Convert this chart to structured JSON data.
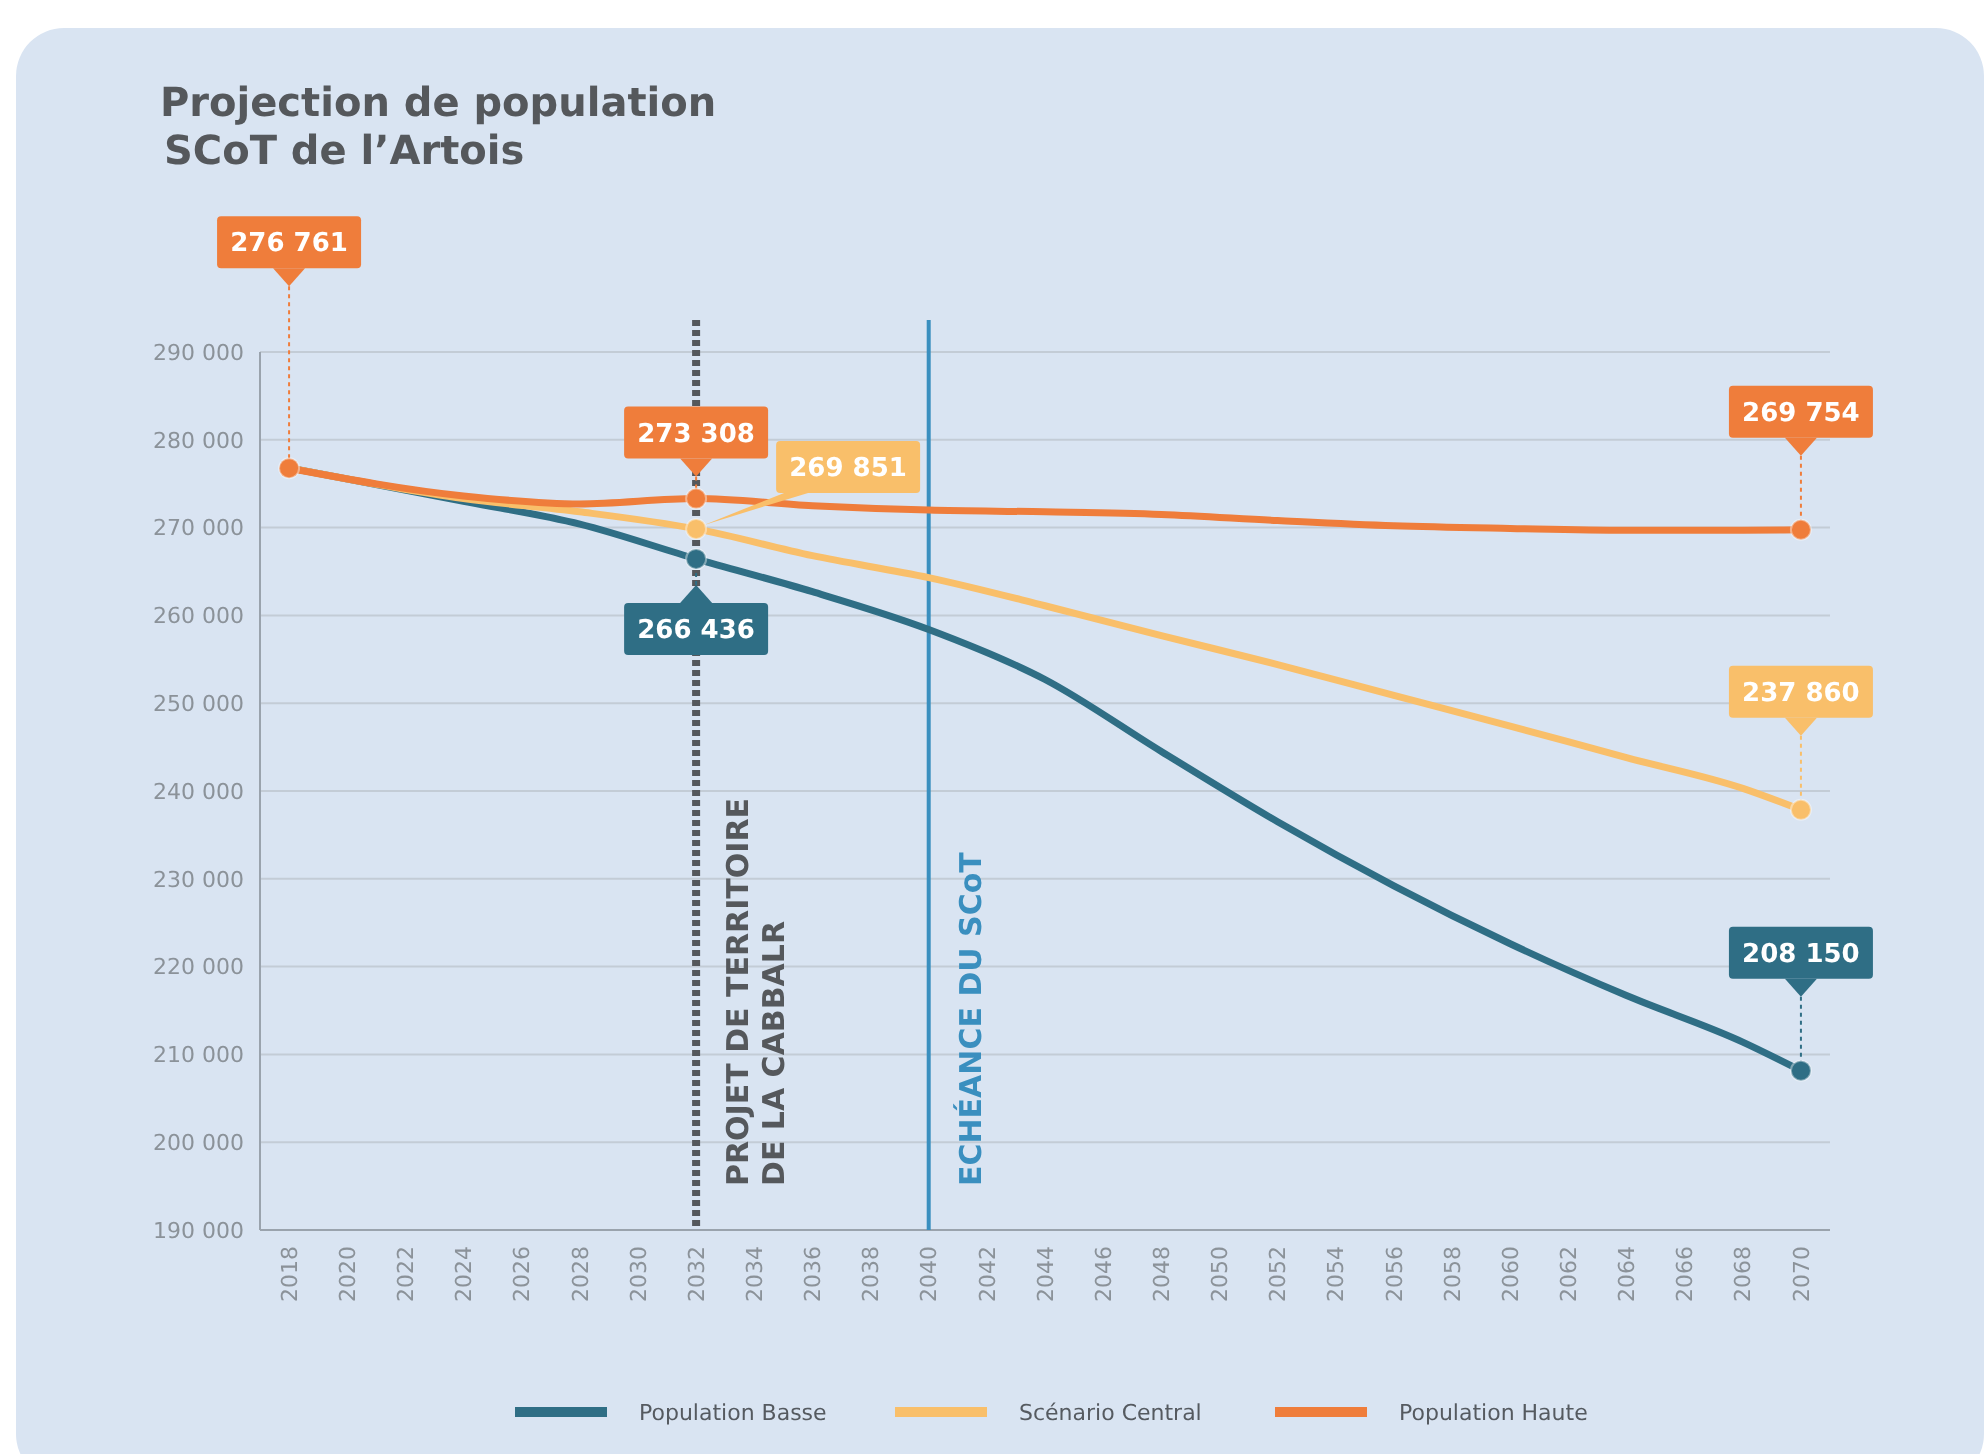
{
  "chart_data": {
    "type": "line",
    "title": "Projection de population",
    "subtitle": "SCoT de l’Artois",
    "x": [
      2018,
      2024,
      2028,
      2032,
      2036,
      2040,
      2044,
      2048,
      2052,
      2056,
      2060,
      2064,
      2068,
      2070
    ],
    "series": [
      {
        "name": "Population Basse",
        "color": "#2f6e85",
        "values": [
          276800,
          273000,
          270400,
          266436,
          262700,
          258400,
          252700,
          244500,
          236500,
          229200,
          222600,
          216700,
          211400,
          208150
        ],
        "value_labels": [
          null,
          null,
          null,
          "266 436",
          null,
          null,
          null,
          null,
          null,
          null,
          null,
          null,
          null,
          "208 150"
        ]
      },
      {
        "name": "Scénario Central",
        "color": "#f9bf6a",
        "values": [
          276800,
          273300,
          271800,
          269851,
          266800,
          264300,
          261100,
          257700,
          254400,
          250900,
          247400,
          243800,
          240300,
          237860
        ],
        "value_labels": [
          null,
          null,
          null,
          "269 851",
          null,
          null,
          null,
          null,
          null,
          null,
          null,
          null,
          null,
          "237 860"
        ]
      },
      {
        "name": "Population Haute",
        "color": "#ef7d3b",
        "values": [
          276761,
          273600,
          272700,
          273308,
          272500,
          272000,
          271800,
          271500,
          270800,
          270200,
          269900,
          269700,
          269700,
          269754
        ],
        "value_labels": [
          "276 761",
          null,
          null,
          "273 308",
          null,
          null,
          null,
          null,
          null,
          null,
          null,
          null,
          null,
          "269 754"
        ]
      }
    ],
    "xlim": [
      2017,
      2071
    ],
    "xticks": [
      2018,
      2020,
      2022,
      2024,
      2026,
      2028,
      2030,
      2032,
      2034,
      2036,
      2038,
      2040,
      2042,
      2044,
      2046,
      2048,
      2050,
      2052,
      2054,
      2056,
      2058,
      2060,
      2062,
      2064,
      2066,
      2068,
      2070
    ],
    "ylim": [
      190000,
      290000
    ],
    "yticks": [
      {
        "value": 190000,
        "label": "190 000"
      },
      {
        "value": 200000,
        "label": "200 000"
      },
      {
        "value": 210000,
        "label": "210 000"
      },
      {
        "value": 220000,
        "label": "220 000"
      },
      {
        "value": 230000,
        "label": "230 000"
      },
      {
        "value": 240000,
        "label": "240 000"
      },
      {
        "value": 250000,
        "label": "250 000"
      },
      {
        "value": 260000,
        "label": "260 000"
      },
      {
        "value": 270000,
        "label": "270 000"
      },
      {
        "value": 280000,
        "label": "280 000"
      },
      {
        "value": 290000,
        "label": "290 000"
      }
    ],
    "ref_lines": [
      {
        "axis": "x",
        "value": 2032,
        "label": "PROJET DE TERRITOIRE\nDE LA CABBALR",
        "color": "#55585c",
        "line_style": "dotted"
      },
      {
        "axis": "x",
        "value": 2040,
        "label": "ECHÉANCE DU SCoT",
        "color": "#3a8fbf",
        "line_style": "solid"
      }
    ],
    "grid": "y",
    "legend": "bottom",
    "line_style": "solid"
  }
}
